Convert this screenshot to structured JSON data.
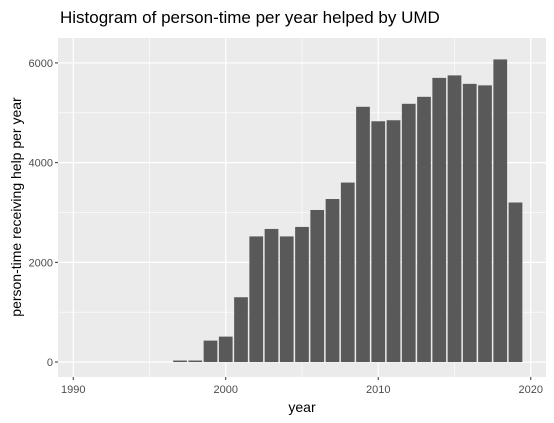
{
  "chart_data": {
    "type": "bar",
    "title": "Histogram of person-time per year helped by UMD",
    "xlabel": "year",
    "ylabel": "person-time receiving help per year",
    "xlim": [
      1989,
      2021
    ],
    "ylim": [
      -300,
      6500
    ],
    "xticks": [
      1990,
      2000,
      2010,
      2020
    ],
    "yticks": [
      0,
      2000,
      4000,
      6000
    ],
    "grid": true,
    "panel_background": "#ebebeb",
    "bar_color": "#595959",
    "x": [
      1997,
      1998,
      1999,
      2000,
      2001,
      2002,
      2003,
      2004,
      2005,
      2006,
      2007,
      2008,
      2009,
      2010,
      2011,
      2012,
      2013,
      2014,
      2015,
      2016,
      2017,
      2018,
      2019
    ],
    "values": [
      30,
      30,
      430,
      510,
      1300,
      2520,
      2670,
      2520,
      2710,
      3050,
      3270,
      3600,
      5120,
      4830,
      4850,
      5180,
      5320,
      5700,
      5750,
      5580,
      5550,
      6070,
      3200
    ]
  }
}
